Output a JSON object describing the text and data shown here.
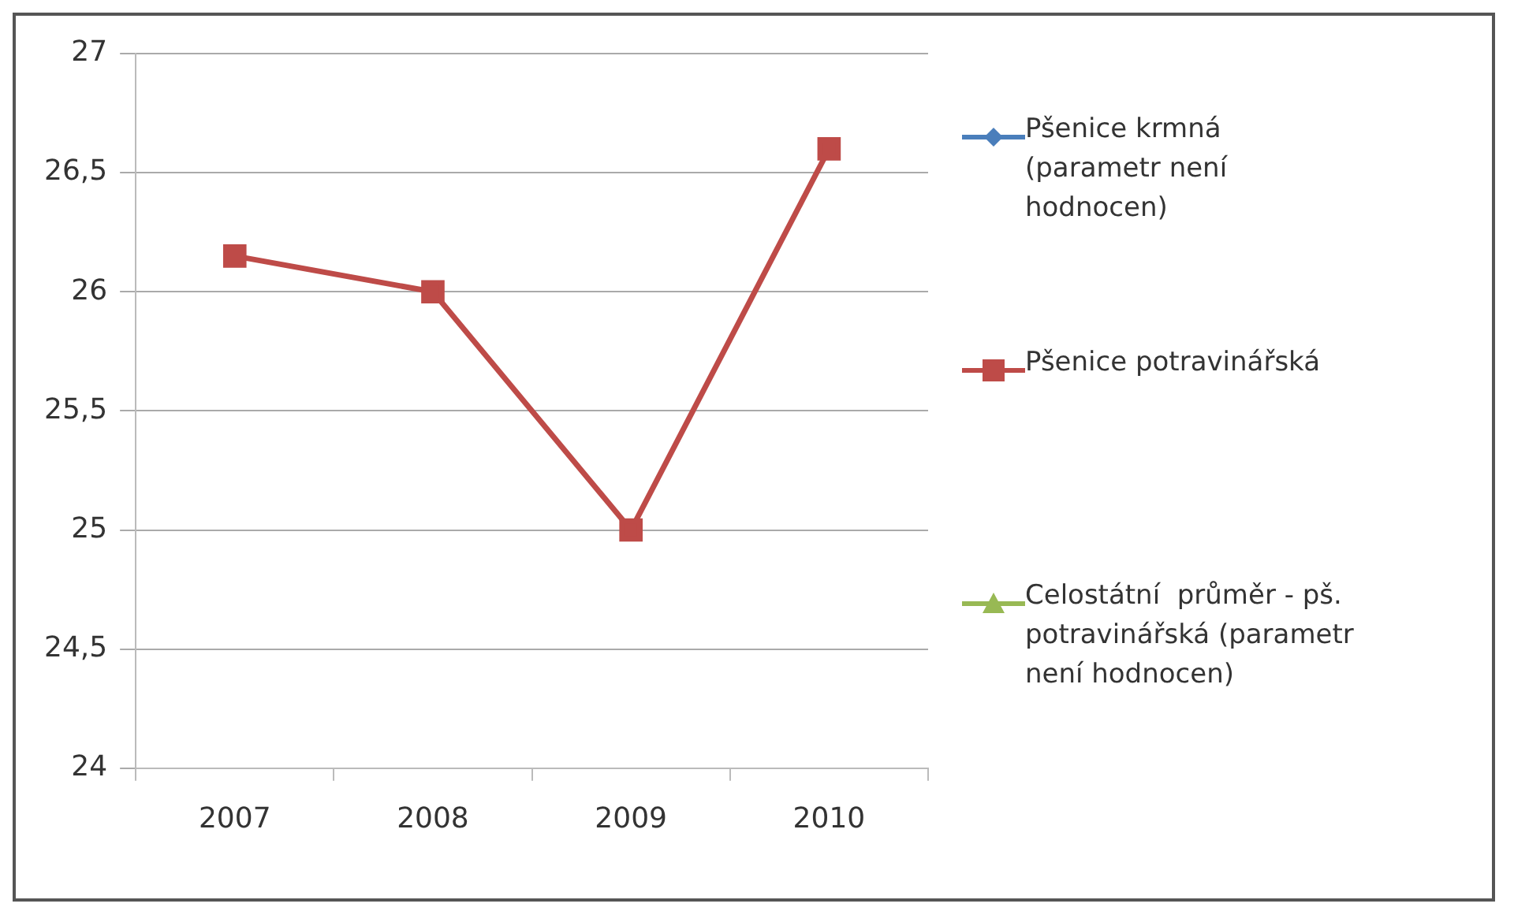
{
  "chart_data": {
    "type": "line",
    "categories": [
      "2007",
      "2008",
      "2009",
      "2010"
    ],
    "series": [
      {
        "name": "Pšenice krmná (parametr není hodnocen)",
        "color": "#4a7ebb",
        "marker": "diamond",
        "values": [
          null,
          null,
          null,
          null
        ]
      },
      {
        "name": "Pšenice potravinářská",
        "color": "#be4b48",
        "marker": "square",
        "values": [
          26.15,
          26.0,
          25.0,
          26.6
        ]
      },
      {
        "name": "Celostátní  průměr - pš. potravinářská (parametr není hodnocen)",
        "color": "#98b954",
        "marker": "triangle",
        "values": [
          null,
          null,
          null,
          null
        ]
      }
    ],
    "ylim": [
      24,
      27
    ],
    "yticks": [
      24,
      {
        "value": 24.5,
        "label": "24,5"
      },
      25,
      {
        "value": 25.5,
        "label": "25,5"
      },
      26,
      {
        "value": 26.5,
        "label": "26,5"
      },
      27
    ],
    "grid": "y",
    "legend": "right"
  }
}
